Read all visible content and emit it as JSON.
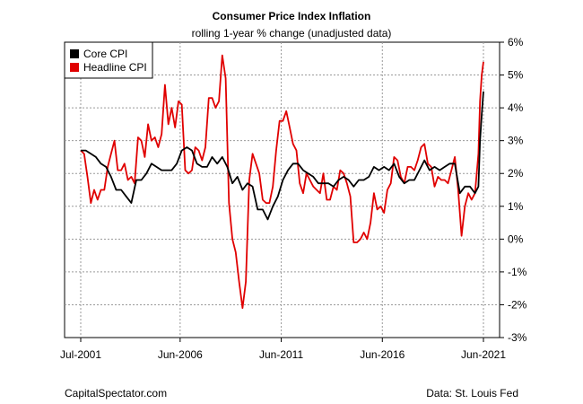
{
  "chart_data": {
    "type": "line",
    "title": "Consumer Price Index Inflation",
    "subtitle": "rolling 1-year % change (unadjusted data)",
    "xlabel": "",
    "ylabel": "",
    "x_ticks": [
      "Jul-2001",
      "Jun-2006",
      "Jun-2011",
      "Jun-2016",
      "Jun-2021"
    ],
    "y_ticks": [
      "6%",
      "5%",
      "4%",
      "3%",
      "2%",
      "1%",
      "0%",
      "-1%",
      "-2%",
      "-3%"
    ],
    "ylim": [
      -3,
      6
    ],
    "xlim": [
      "2001-07",
      "2021-06"
    ],
    "grid": true,
    "y_axis_side": "right",
    "legend": {
      "position": "top-left",
      "entries": [
        "Core CPI",
        "Headline CPI"
      ]
    },
    "series": [
      {
        "name": "Core CPI",
        "color": "#000000",
        "points": [
          [
            "2001-07",
            2.7
          ],
          [
            "2001-10",
            2.7
          ],
          [
            "2002-01",
            2.6
          ],
          [
            "2002-04",
            2.5
          ],
          [
            "2002-07",
            2.3
          ],
          [
            "2002-10",
            2.2
          ],
          [
            "2003-01",
            1.9
          ],
          [
            "2003-04",
            1.5
          ],
          [
            "2003-07",
            1.5
          ],
          [
            "2003-10",
            1.3
          ],
          [
            "2004-01",
            1.1
          ],
          [
            "2004-04",
            1.8
          ],
          [
            "2004-07",
            1.8
          ],
          [
            "2004-10",
            2.0
          ],
          [
            "2005-01",
            2.3
          ],
          [
            "2005-04",
            2.2
          ],
          [
            "2005-07",
            2.1
          ],
          [
            "2005-10",
            2.1
          ],
          [
            "2006-01",
            2.1
          ],
          [
            "2006-04",
            2.3
          ],
          [
            "2006-07",
            2.7
          ],
          [
            "2006-10",
            2.8
          ],
          [
            "2007-01",
            2.7
          ],
          [
            "2007-04",
            2.3
          ],
          [
            "2007-07",
            2.2
          ],
          [
            "2007-10",
            2.2
          ],
          [
            "2008-01",
            2.5
          ],
          [
            "2008-04",
            2.3
          ],
          [
            "2008-07",
            2.5
          ],
          [
            "2008-10",
            2.2
          ],
          [
            "2009-01",
            1.7
          ],
          [
            "2009-04",
            1.9
          ],
          [
            "2009-07",
            1.5
          ],
          [
            "2009-10",
            1.7
          ],
          [
            "2010-01",
            1.6
          ],
          [
            "2010-04",
            0.9
          ],
          [
            "2010-07",
            0.9
          ],
          [
            "2010-10",
            0.6
          ],
          [
            "2011-01",
            1.0
          ],
          [
            "2011-04",
            1.3
          ],
          [
            "2011-07",
            1.8
          ],
          [
            "2011-10",
            2.1
          ],
          [
            "2012-01",
            2.3
          ],
          [
            "2012-04",
            2.3
          ],
          [
            "2012-07",
            2.1
          ],
          [
            "2012-10",
            2.0
          ],
          [
            "2013-01",
            1.9
          ],
          [
            "2013-04",
            1.7
          ],
          [
            "2013-07",
            1.7
          ],
          [
            "2013-10",
            1.7
          ],
          [
            "2014-01",
            1.6
          ],
          [
            "2014-04",
            1.8
          ],
          [
            "2014-07",
            1.9
          ],
          [
            "2014-10",
            1.8
          ],
          [
            "2015-01",
            1.6
          ],
          [
            "2015-04",
            1.8
          ],
          [
            "2015-07",
            1.8
          ],
          [
            "2015-10",
            1.9
          ],
          [
            "2016-01",
            2.2
          ],
          [
            "2016-04",
            2.1
          ],
          [
            "2016-07",
            2.2
          ],
          [
            "2016-10",
            2.1
          ],
          [
            "2017-01",
            2.3
          ],
          [
            "2017-04",
            1.9
          ],
          [
            "2017-07",
            1.7
          ],
          [
            "2017-10",
            1.8
          ],
          [
            "2018-01",
            1.8
          ],
          [
            "2018-04",
            2.1
          ],
          [
            "2018-07",
            2.4
          ],
          [
            "2018-10",
            2.1
          ],
          [
            "2019-01",
            2.2
          ],
          [
            "2019-04",
            2.1
          ],
          [
            "2019-07",
            2.2
          ],
          [
            "2019-10",
            2.3
          ],
          [
            "2020-01",
            2.3
          ],
          [
            "2020-04",
            1.4
          ],
          [
            "2020-07",
            1.6
          ],
          [
            "2020-10",
            1.6
          ],
          [
            "2021-01",
            1.4
          ],
          [
            "2021-03",
            1.6
          ],
          [
            "2021-04",
            3.0
          ],
          [
            "2021-05",
            3.8
          ],
          [
            "2021-06",
            4.5
          ]
        ]
      },
      {
        "name": "Headline CPI",
        "color": "#e00000",
        "points": [
          [
            "2001-07",
            2.7
          ],
          [
            "2001-09",
            2.6
          ],
          [
            "2001-11",
            1.9
          ],
          [
            "2002-01",
            1.1
          ],
          [
            "2002-03",
            1.5
          ],
          [
            "2002-05",
            1.2
          ],
          [
            "2002-07",
            1.5
          ],
          [
            "2002-09",
            1.5
          ],
          [
            "2002-11",
            2.2
          ],
          [
            "2003-01",
            2.6
          ],
          [
            "2003-03",
            3.0
          ],
          [
            "2003-05",
            2.1
          ],
          [
            "2003-07",
            2.1
          ],
          [
            "2003-09",
            2.3
          ],
          [
            "2003-11",
            1.8
          ],
          [
            "2004-01",
            1.9
          ],
          [
            "2004-03",
            1.7
          ],
          [
            "2004-05",
            3.1
          ],
          [
            "2004-07",
            3.0
          ],
          [
            "2004-09",
            2.5
          ],
          [
            "2004-11",
            3.5
          ],
          [
            "2005-01",
            3.0
          ],
          [
            "2005-03",
            3.1
          ],
          [
            "2005-05",
            2.8
          ],
          [
            "2005-07",
            3.2
          ],
          [
            "2005-09",
            4.7
          ],
          [
            "2005-11",
            3.5
          ],
          [
            "2006-01",
            4.0
          ],
          [
            "2006-03",
            3.4
          ],
          [
            "2006-05",
            4.2
          ],
          [
            "2006-07",
            4.1
          ],
          [
            "2006-09",
            2.1
          ],
          [
            "2006-11",
            2.0
          ],
          [
            "2007-01",
            2.1
          ],
          [
            "2007-03",
            2.8
          ],
          [
            "2007-05",
            2.7
          ],
          [
            "2007-07",
            2.4
          ],
          [
            "2007-09",
            2.8
          ],
          [
            "2007-11",
            4.3
          ],
          [
            "2008-01",
            4.3
          ],
          [
            "2008-03",
            4.0
          ],
          [
            "2008-05",
            4.2
          ],
          [
            "2008-07",
            5.6
          ],
          [
            "2008-09",
            4.9
          ],
          [
            "2008-11",
            1.1
          ],
          [
            "2009-01",
            0.0
          ],
          [
            "2009-03",
            -0.4
          ],
          [
            "2009-05",
            -1.3
          ],
          [
            "2009-07",
            -2.1
          ],
          [
            "2009-09",
            -1.3
          ],
          [
            "2009-11",
            1.8
          ],
          [
            "2010-01",
            2.6
          ],
          [
            "2010-03",
            2.3
          ],
          [
            "2010-05",
            2.0
          ],
          [
            "2010-07",
            1.2
          ],
          [
            "2010-09",
            1.1
          ],
          [
            "2010-11",
            1.1
          ],
          [
            "2011-01",
            1.6
          ],
          [
            "2011-03",
            2.7
          ],
          [
            "2011-05",
            3.6
          ],
          [
            "2011-07",
            3.6
          ],
          [
            "2011-09",
            3.9
          ],
          [
            "2011-11",
            3.4
          ],
          [
            "2012-01",
            2.9
          ],
          [
            "2012-03",
            2.7
          ],
          [
            "2012-05",
            1.7
          ],
          [
            "2012-07",
            1.4
          ],
          [
            "2012-09",
            2.0
          ],
          [
            "2012-11",
            1.8
          ],
          [
            "2013-01",
            1.6
          ],
          [
            "2013-03",
            1.5
          ],
          [
            "2013-05",
            1.4
          ],
          [
            "2013-07",
            2.0
          ],
          [
            "2013-09",
            1.2
          ],
          [
            "2013-11",
            1.2
          ],
          [
            "2014-01",
            1.6
          ],
          [
            "2014-03",
            1.5
          ],
          [
            "2014-05",
            2.1
          ],
          [
            "2014-07",
            2.0
          ],
          [
            "2014-09",
            1.7
          ],
          [
            "2014-11",
            1.3
          ],
          [
            "2015-01",
            -0.1
          ],
          [
            "2015-03",
            -0.1
          ],
          [
            "2015-05",
            0.0
          ],
          [
            "2015-07",
            0.2
          ],
          [
            "2015-09",
            0.0
          ],
          [
            "2015-11",
            0.5
          ],
          [
            "2016-01",
            1.4
          ],
          [
            "2016-03",
            0.9
          ],
          [
            "2016-05",
            1.0
          ],
          [
            "2016-07",
            0.8
          ],
          [
            "2016-09",
            1.5
          ],
          [
            "2016-11",
            1.7
          ],
          [
            "2017-01",
            2.5
          ],
          [
            "2017-03",
            2.4
          ],
          [
            "2017-05",
            1.9
          ],
          [
            "2017-07",
            1.7
          ],
          [
            "2017-09",
            2.2
          ],
          [
            "2017-11",
            2.2
          ],
          [
            "2018-01",
            2.1
          ],
          [
            "2018-03",
            2.4
          ],
          [
            "2018-05",
            2.8
          ],
          [
            "2018-07",
            2.9
          ],
          [
            "2018-09",
            2.3
          ],
          [
            "2018-11",
            2.2
          ],
          [
            "2019-01",
            1.6
          ],
          [
            "2019-03",
            1.9
          ],
          [
            "2019-05",
            1.8
          ],
          [
            "2019-07",
            1.8
          ],
          [
            "2019-09",
            1.7
          ],
          [
            "2019-11",
            2.1
          ],
          [
            "2020-01",
            2.5
          ],
          [
            "2020-03",
            1.5
          ],
          [
            "2020-05",
            0.1
          ],
          [
            "2020-07",
            1.0
          ],
          [
            "2020-09",
            1.4
          ],
          [
            "2020-11",
            1.2
          ],
          [
            "2021-01",
            1.4
          ],
          [
            "2021-03",
            2.6
          ],
          [
            "2021-04",
            4.2
          ],
          [
            "2021-05",
            5.0
          ],
          [
            "2021-06",
            5.4
          ]
        ]
      }
    ]
  },
  "footer": {
    "left": "CapitalSpectator.com",
    "right": "Data: St. Louis Fed"
  }
}
